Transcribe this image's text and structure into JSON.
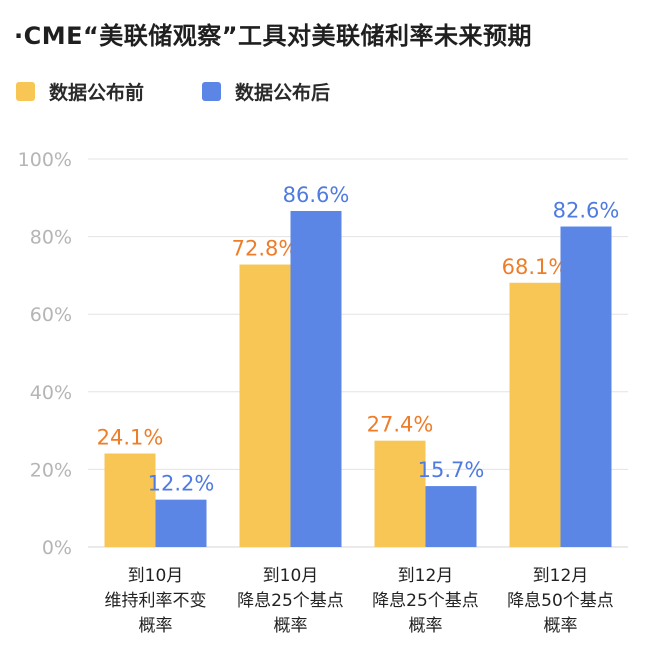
{
  "title": "·CME“美联储观察”工具对美联储利率未来预期",
  "colors": {
    "before": "#F7C654",
    "after": "#5B86E5",
    "before_label": "#EE7D2A",
    "after_label": "#4F7BE0",
    "axis_text": "#b5b5b5",
    "grid": "#e3e3e3"
  },
  "chart_data": {
    "type": "bar",
    "title": "·CME“美联储观察”工具对美联储利率未来预期",
    "categories": [
      [
        "到10月",
        "维持利率不变",
        "概率"
      ],
      [
        "到10月",
        "降息25个基点",
        "概率"
      ],
      [
        "到12月",
        "降息25个基点",
        "概率"
      ],
      [
        "到12月",
        "降息50个基点",
        "概率"
      ]
    ],
    "series": [
      {
        "name": "数据公布前",
        "values": [
          24.1,
          72.8,
          27.4,
          68.1
        ],
        "labels": [
          "24.1%",
          "72.8%",
          "27.4%",
          "68.1%"
        ]
      },
      {
        "name": "数据公布后",
        "values": [
          12.2,
          86.6,
          15.7,
          82.6
        ],
        "labels": [
          "12.2%",
          "86.6%",
          "15.7%",
          "82.6%"
        ]
      }
    ],
    "ylim": [
      0,
      100
    ],
    "yticks": [
      0,
      20,
      40,
      60,
      80,
      100
    ],
    "ytick_labels": [
      "0%",
      "20%",
      "40%",
      "60%",
      "80%",
      "100%"
    ],
    "grid": true,
    "legend_position": "top-left"
  }
}
